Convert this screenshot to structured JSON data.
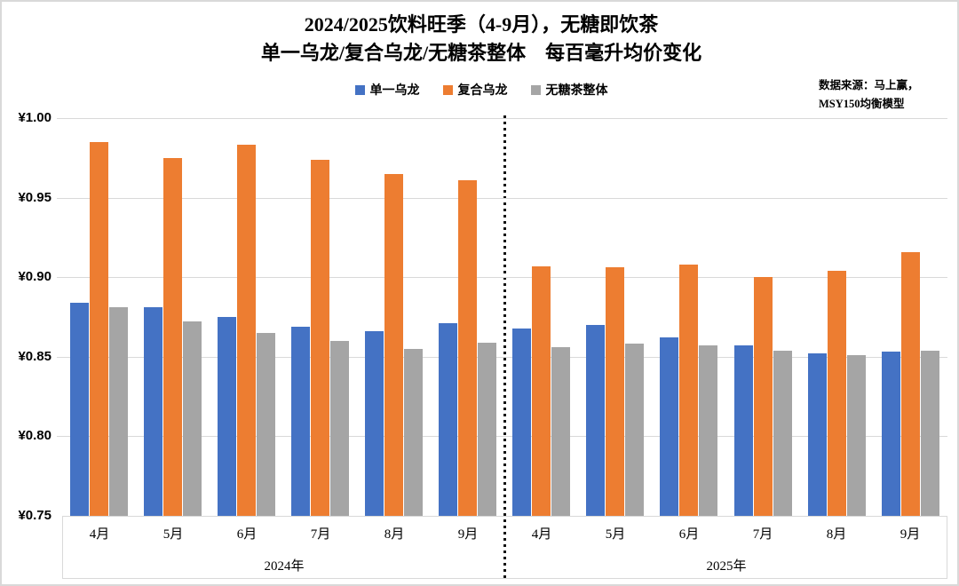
{
  "source_note": {
    "line1": "数据来源：马上赢，",
    "line2": "MSY150均衡模型"
  },
  "chart_data": {
    "type": "bar",
    "title_lines": [
      "2024/2025饮料旺季（4-9月），无糖即饮茶",
      "单一乌龙/复合乌龙/无糖茶整体　每百毫升均价变化"
    ],
    "currency_prefix": "¥",
    "ylim": [
      0.75,
      1.0
    ],
    "ytick_step": 0.05,
    "grid": true,
    "legend_position": "top-center",
    "yticks": [
      {
        "label": "¥1.00",
        "value": 1.0
      },
      {
        "label": "¥0.95",
        "value": 0.95
      },
      {
        "label": "¥0.90",
        "value": 0.9
      },
      {
        "label": "¥0.85",
        "value": 0.85
      },
      {
        "label": "¥0.80",
        "value": 0.8
      },
      {
        "label": "¥0.75",
        "value": 0.75
      }
    ],
    "series_meta": [
      {
        "name": "单一乌龙",
        "color": "#4472C4"
      },
      {
        "name": "复合乌龙",
        "color": "#ED7D31"
      },
      {
        "name": "无糖茶整体",
        "color": "#A5A5A5"
      }
    ],
    "periods": [
      {
        "label": "2024年",
        "categories": [
          "4月",
          "5月",
          "6月",
          "7月",
          "8月",
          "9月"
        ],
        "series_values": [
          [
            0.884,
            0.881,
            0.875,
            0.869,
            0.866,
            0.871
          ],
          [
            0.985,
            0.975,
            0.983,
            0.974,
            0.965,
            0.961
          ],
          [
            0.881,
            0.872,
            0.865,
            0.86,
            0.855,
            0.859
          ]
        ]
      },
      {
        "label": "2025年",
        "categories": [
          "4月",
          "5月",
          "6月",
          "7月",
          "8月",
          "9月"
        ],
        "series_values": [
          [
            0.868,
            0.87,
            0.862,
            0.857,
            0.852,
            0.853
          ],
          [
            0.907,
            0.906,
            0.908,
            0.9,
            0.904,
            0.916
          ],
          [
            0.856,
            0.858,
            0.857,
            0.854,
            0.851,
            0.854
          ]
        ]
      }
    ],
    "period_divider_style": "dotted-vertical-line"
  }
}
